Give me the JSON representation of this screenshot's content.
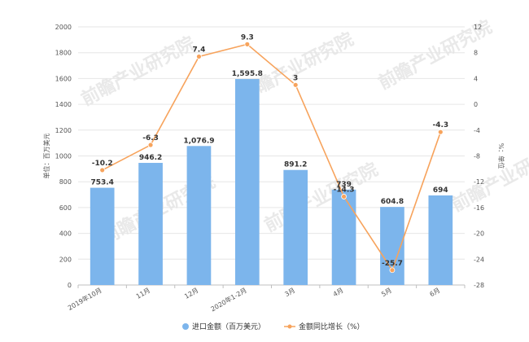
{
  "chart_data": {
    "type": "bar",
    "categories": [
      "2019年10月",
      "11月",
      "12月",
      "2020年1-2月",
      "3月",
      "4月",
      "5月",
      "6月"
    ],
    "series": [
      {
        "name": "进口金额（百万美元）",
        "type": "bar",
        "axis": "left",
        "color": "#7cb5ec",
        "values": [
          753.4,
          946.2,
          1076.9,
          1595.8,
          891.2,
          739,
          604.8,
          694
        ],
        "labels": [
          "753.4",
          "946.2",
          "1,076.9",
          "1,595.8",
          "891.2",
          "739",
          "604.8",
          "694"
        ]
      },
      {
        "name": "金额同比增长（%）",
        "type": "line",
        "axis": "right",
        "color": "#f7a35c",
        "values": [
          -10.2,
          -6.3,
          7.4,
          9.3,
          3,
          -14.3,
          -25.7,
          -4.3
        ],
        "labels": [
          "-10.2",
          "-6.3",
          "7.4",
          "9.3",
          "3",
          "-14.3",
          "-25.7",
          "-4.3"
        ]
      }
    ],
    "ylabel": "单位：百万美元",
    "ylim": [
      0,
      2000
    ],
    "yticks": [
      0,
      200,
      400,
      600,
      800,
      1000,
      1200,
      1400,
      1600,
      1800,
      2000
    ],
    "y2label": "%：单位",
    "y2lim": [
      -28,
      12
    ],
    "y2ticks": [
      -28,
      -24,
      -20,
      -16,
      -12,
      -8,
      -4,
      0,
      4,
      8,
      12
    ],
    "grid": true,
    "legend": "bottom-center"
  },
  "watermark": "前瞻产业研究院"
}
